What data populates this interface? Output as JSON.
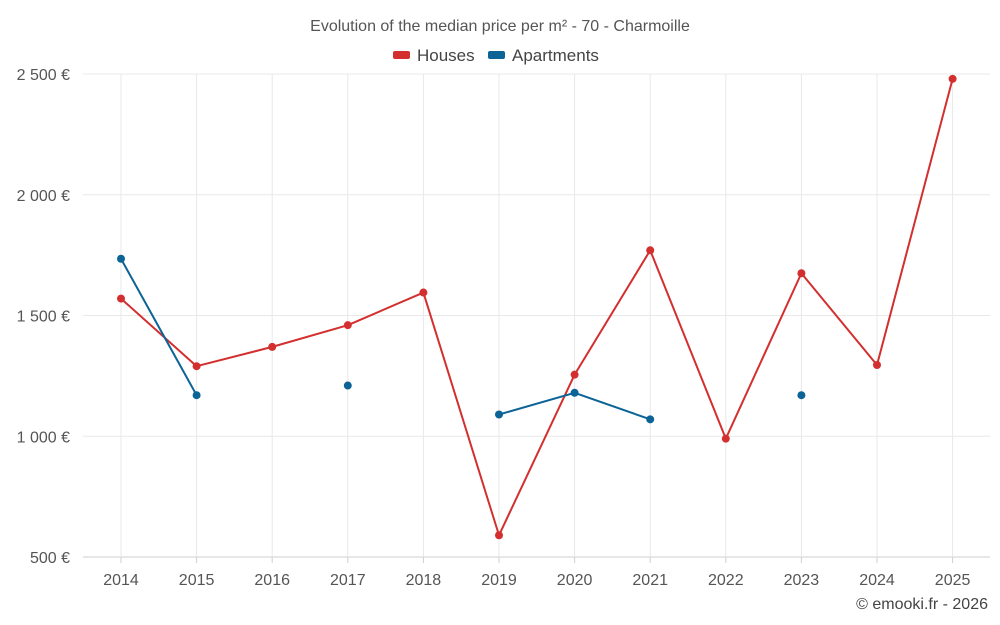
{
  "chart_data": {
    "type": "line",
    "title": "Evolution of the median price per m² - 70 - Charmoille",
    "categories": [
      "2014",
      "2015",
      "2016",
      "2017",
      "2018",
      "2019",
      "2020",
      "2021",
      "2022",
      "2023",
      "2024",
      "2025"
    ],
    "series": [
      {
        "name": "Houses",
        "color": "#d32f2f",
        "values": [
          1570,
          1290,
          1370,
          1460,
          1595,
          590,
          1255,
          1770,
          990,
          1675,
          1295,
          2480
        ]
      },
      {
        "name": "Apartments",
        "color": "#0b6396",
        "values": [
          1735,
          1170,
          null,
          1210,
          null,
          1090,
          1180,
          1070,
          null,
          1170,
          null,
          null
        ]
      }
    ],
    "ylim": [
      500,
      2500
    ],
    "yticks": [
      500,
      1000,
      1500,
      2000,
      2500
    ],
    "ytick_labels": [
      "500 €",
      "1 000 €",
      "1 500 €",
      "2 000 €",
      "2 500 €"
    ],
    "xlabel": "",
    "ylabel": "",
    "legend": "top-center",
    "grid": true
  },
  "credit": "© emooki.fr - 2026"
}
